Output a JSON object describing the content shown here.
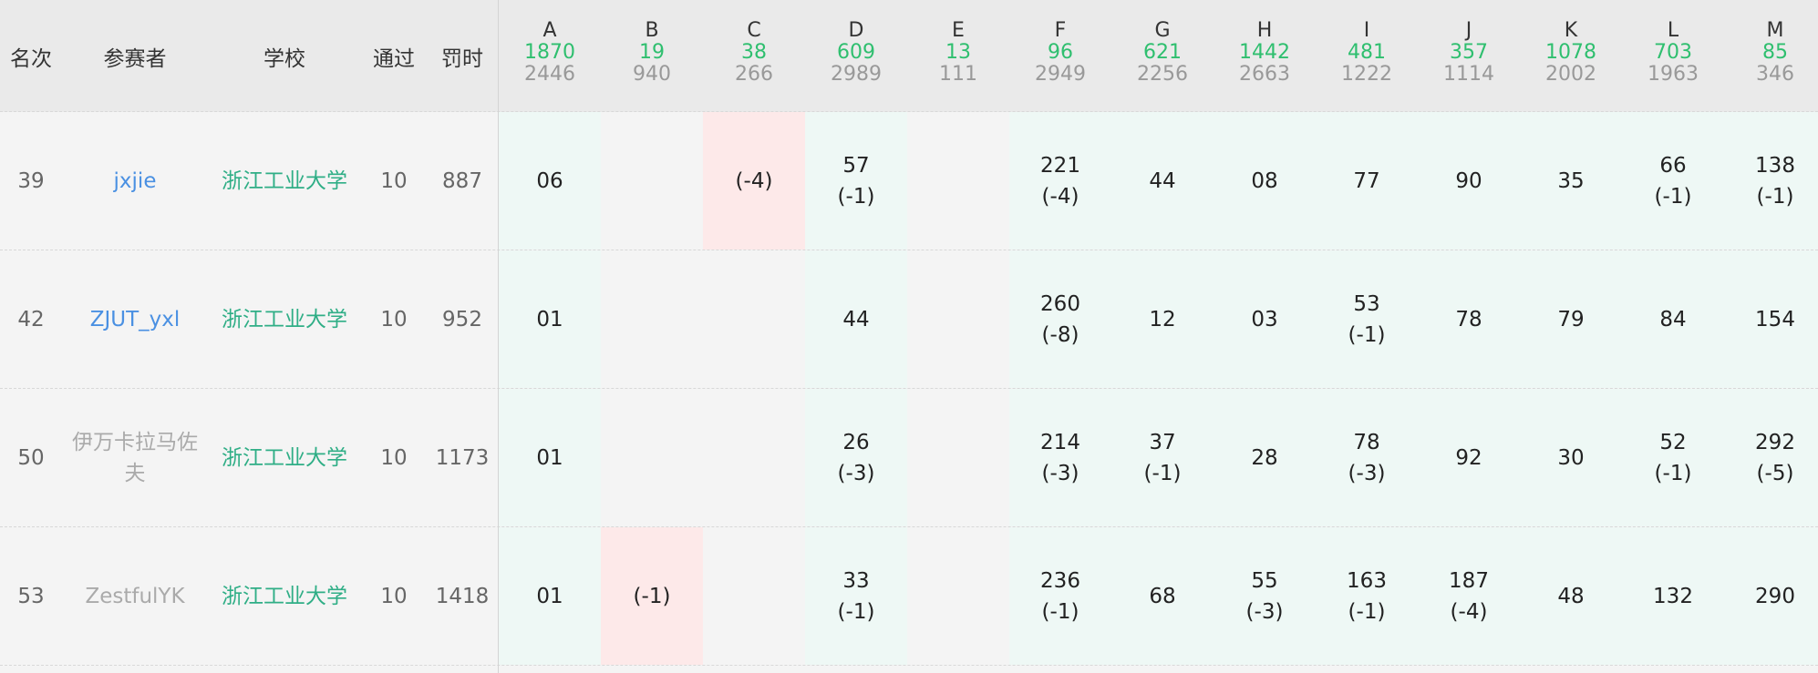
{
  "header": {
    "rank_label": "名次",
    "user_label": "参赛者",
    "school_label": "学校",
    "solved_label": "通过",
    "penalty_label": "罚时"
  },
  "problems": [
    {
      "letter": "A",
      "accepted": "1870",
      "tried": "2446"
    },
    {
      "letter": "B",
      "accepted": "19",
      "tried": "940"
    },
    {
      "letter": "C",
      "accepted": "38",
      "tried": "266"
    },
    {
      "letter": "D",
      "accepted": "609",
      "tried": "2989"
    },
    {
      "letter": "E",
      "accepted": "13",
      "tried": "111"
    },
    {
      "letter": "F",
      "accepted": "96",
      "tried": "2949"
    },
    {
      "letter": "G",
      "accepted": "621",
      "tried": "2256"
    },
    {
      "letter": "H",
      "accepted": "1442",
      "tried": "2663"
    },
    {
      "letter": "I",
      "accepted": "481",
      "tried": "1222"
    },
    {
      "letter": "J",
      "accepted": "357",
      "tried": "1114"
    },
    {
      "letter": "K",
      "accepted": "1078",
      "tried": "2002"
    },
    {
      "letter": "L",
      "accepted": "703",
      "tried": "1963"
    },
    {
      "letter": "M",
      "accepted": "85",
      "tried": "346"
    }
  ],
  "rows": [
    {
      "rank": "39",
      "user": "jxjie",
      "user_style": "link",
      "school": "浙江工业大学",
      "solved": "10",
      "penalty": "887",
      "cells": [
        {
          "status": "ac",
          "time": "06",
          "tries": ""
        },
        {
          "status": "none",
          "time": "",
          "tries": ""
        },
        {
          "status": "wa",
          "time": "",
          "tries": "(-4)"
        },
        {
          "status": "ac",
          "time": "57",
          "tries": "(-1)"
        },
        {
          "status": "none",
          "time": "",
          "tries": ""
        },
        {
          "status": "ac",
          "time": "221",
          "tries": "(-4)"
        },
        {
          "status": "ac",
          "time": "44",
          "tries": ""
        },
        {
          "status": "ac",
          "time": "08",
          "tries": ""
        },
        {
          "status": "ac",
          "time": "77",
          "tries": ""
        },
        {
          "status": "ac",
          "time": "90",
          "tries": ""
        },
        {
          "status": "ac",
          "time": "35",
          "tries": ""
        },
        {
          "status": "ac",
          "time": "66",
          "tries": "(-1)"
        },
        {
          "status": "ac",
          "time": "138",
          "tries": "(-1)"
        }
      ]
    },
    {
      "rank": "42",
      "user": "ZJUT_yxl",
      "user_style": "link",
      "school": "浙江工业大学",
      "solved": "10",
      "penalty": "952",
      "cells": [
        {
          "status": "ac",
          "time": "01",
          "tries": ""
        },
        {
          "status": "none",
          "time": "",
          "tries": ""
        },
        {
          "status": "none",
          "time": "",
          "tries": ""
        },
        {
          "status": "ac",
          "time": "44",
          "tries": ""
        },
        {
          "status": "none",
          "time": "",
          "tries": ""
        },
        {
          "status": "ac",
          "time": "260",
          "tries": "(-8)"
        },
        {
          "status": "ac",
          "time": "12",
          "tries": ""
        },
        {
          "status": "ac",
          "time": "03",
          "tries": ""
        },
        {
          "status": "ac",
          "time": "53",
          "tries": "(-1)"
        },
        {
          "status": "ac",
          "time": "78",
          "tries": ""
        },
        {
          "status": "ac",
          "time": "79",
          "tries": ""
        },
        {
          "status": "ac",
          "time": "84",
          "tries": ""
        },
        {
          "status": "ac",
          "time": "154",
          "tries": ""
        }
      ]
    },
    {
      "rank": "50",
      "user": "伊万卡拉马佐夫",
      "user_style": "gray",
      "school": "浙江工业大学",
      "solved": "10",
      "penalty": "1173",
      "cells": [
        {
          "status": "ac",
          "time": "01",
          "tries": ""
        },
        {
          "status": "none",
          "time": "",
          "tries": ""
        },
        {
          "status": "none",
          "time": "",
          "tries": ""
        },
        {
          "status": "ac",
          "time": "26",
          "tries": "(-3)"
        },
        {
          "status": "none",
          "time": "",
          "tries": ""
        },
        {
          "status": "ac",
          "time": "214",
          "tries": "(-3)"
        },
        {
          "status": "ac",
          "time": "37",
          "tries": "(-1)"
        },
        {
          "status": "ac",
          "time": "28",
          "tries": ""
        },
        {
          "status": "ac",
          "time": "78",
          "tries": "(-3)"
        },
        {
          "status": "ac",
          "time": "92",
          "tries": ""
        },
        {
          "status": "ac",
          "time": "30",
          "tries": ""
        },
        {
          "status": "ac",
          "time": "52",
          "tries": "(-1)"
        },
        {
          "status": "ac",
          "time": "292",
          "tries": "(-5)"
        }
      ]
    },
    {
      "rank": "53",
      "user": "ZestfulYK",
      "user_style": "gray",
      "school": "浙江工业大学",
      "solved": "10",
      "penalty": "1418",
      "cells": [
        {
          "status": "ac",
          "time": "01",
          "tries": ""
        },
        {
          "status": "wa",
          "time": "",
          "tries": "(-1)"
        },
        {
          "status": "none",
          "time": "",
          "tries": ""
        },
        {
          "status": "ac",
          "time": "33",
          "tries": "(-1)"
        },
        {
          "status": "none",
          "time": "",
          "tries": ""
        },
        {
          "status": "ac",
          "time": "236",
          "tries": "(-1)"
        },
        {
          "status": "ac",
          "time": "68",
          "tries": ""
        },
        {
          "status": "ac",
          "time": "55",
          "tries": "(-3)"
        },
        {
          "status": "ac",
          "time": "163",
          "tries": "(-1)"
        },
        {
          "status": "ac",
          "time": "187",
          "tries": "(-4)"
        },
        {
          "status": "ac",
          "time": "48",
          "tries": ""
        },
        {
          "status": "ac",
          "time": "132",
          "tries": ""
        },
        {
          "status": "ac",
          "time": "290",
          "tries": ""
        }
      ]
    }
  ]
}
